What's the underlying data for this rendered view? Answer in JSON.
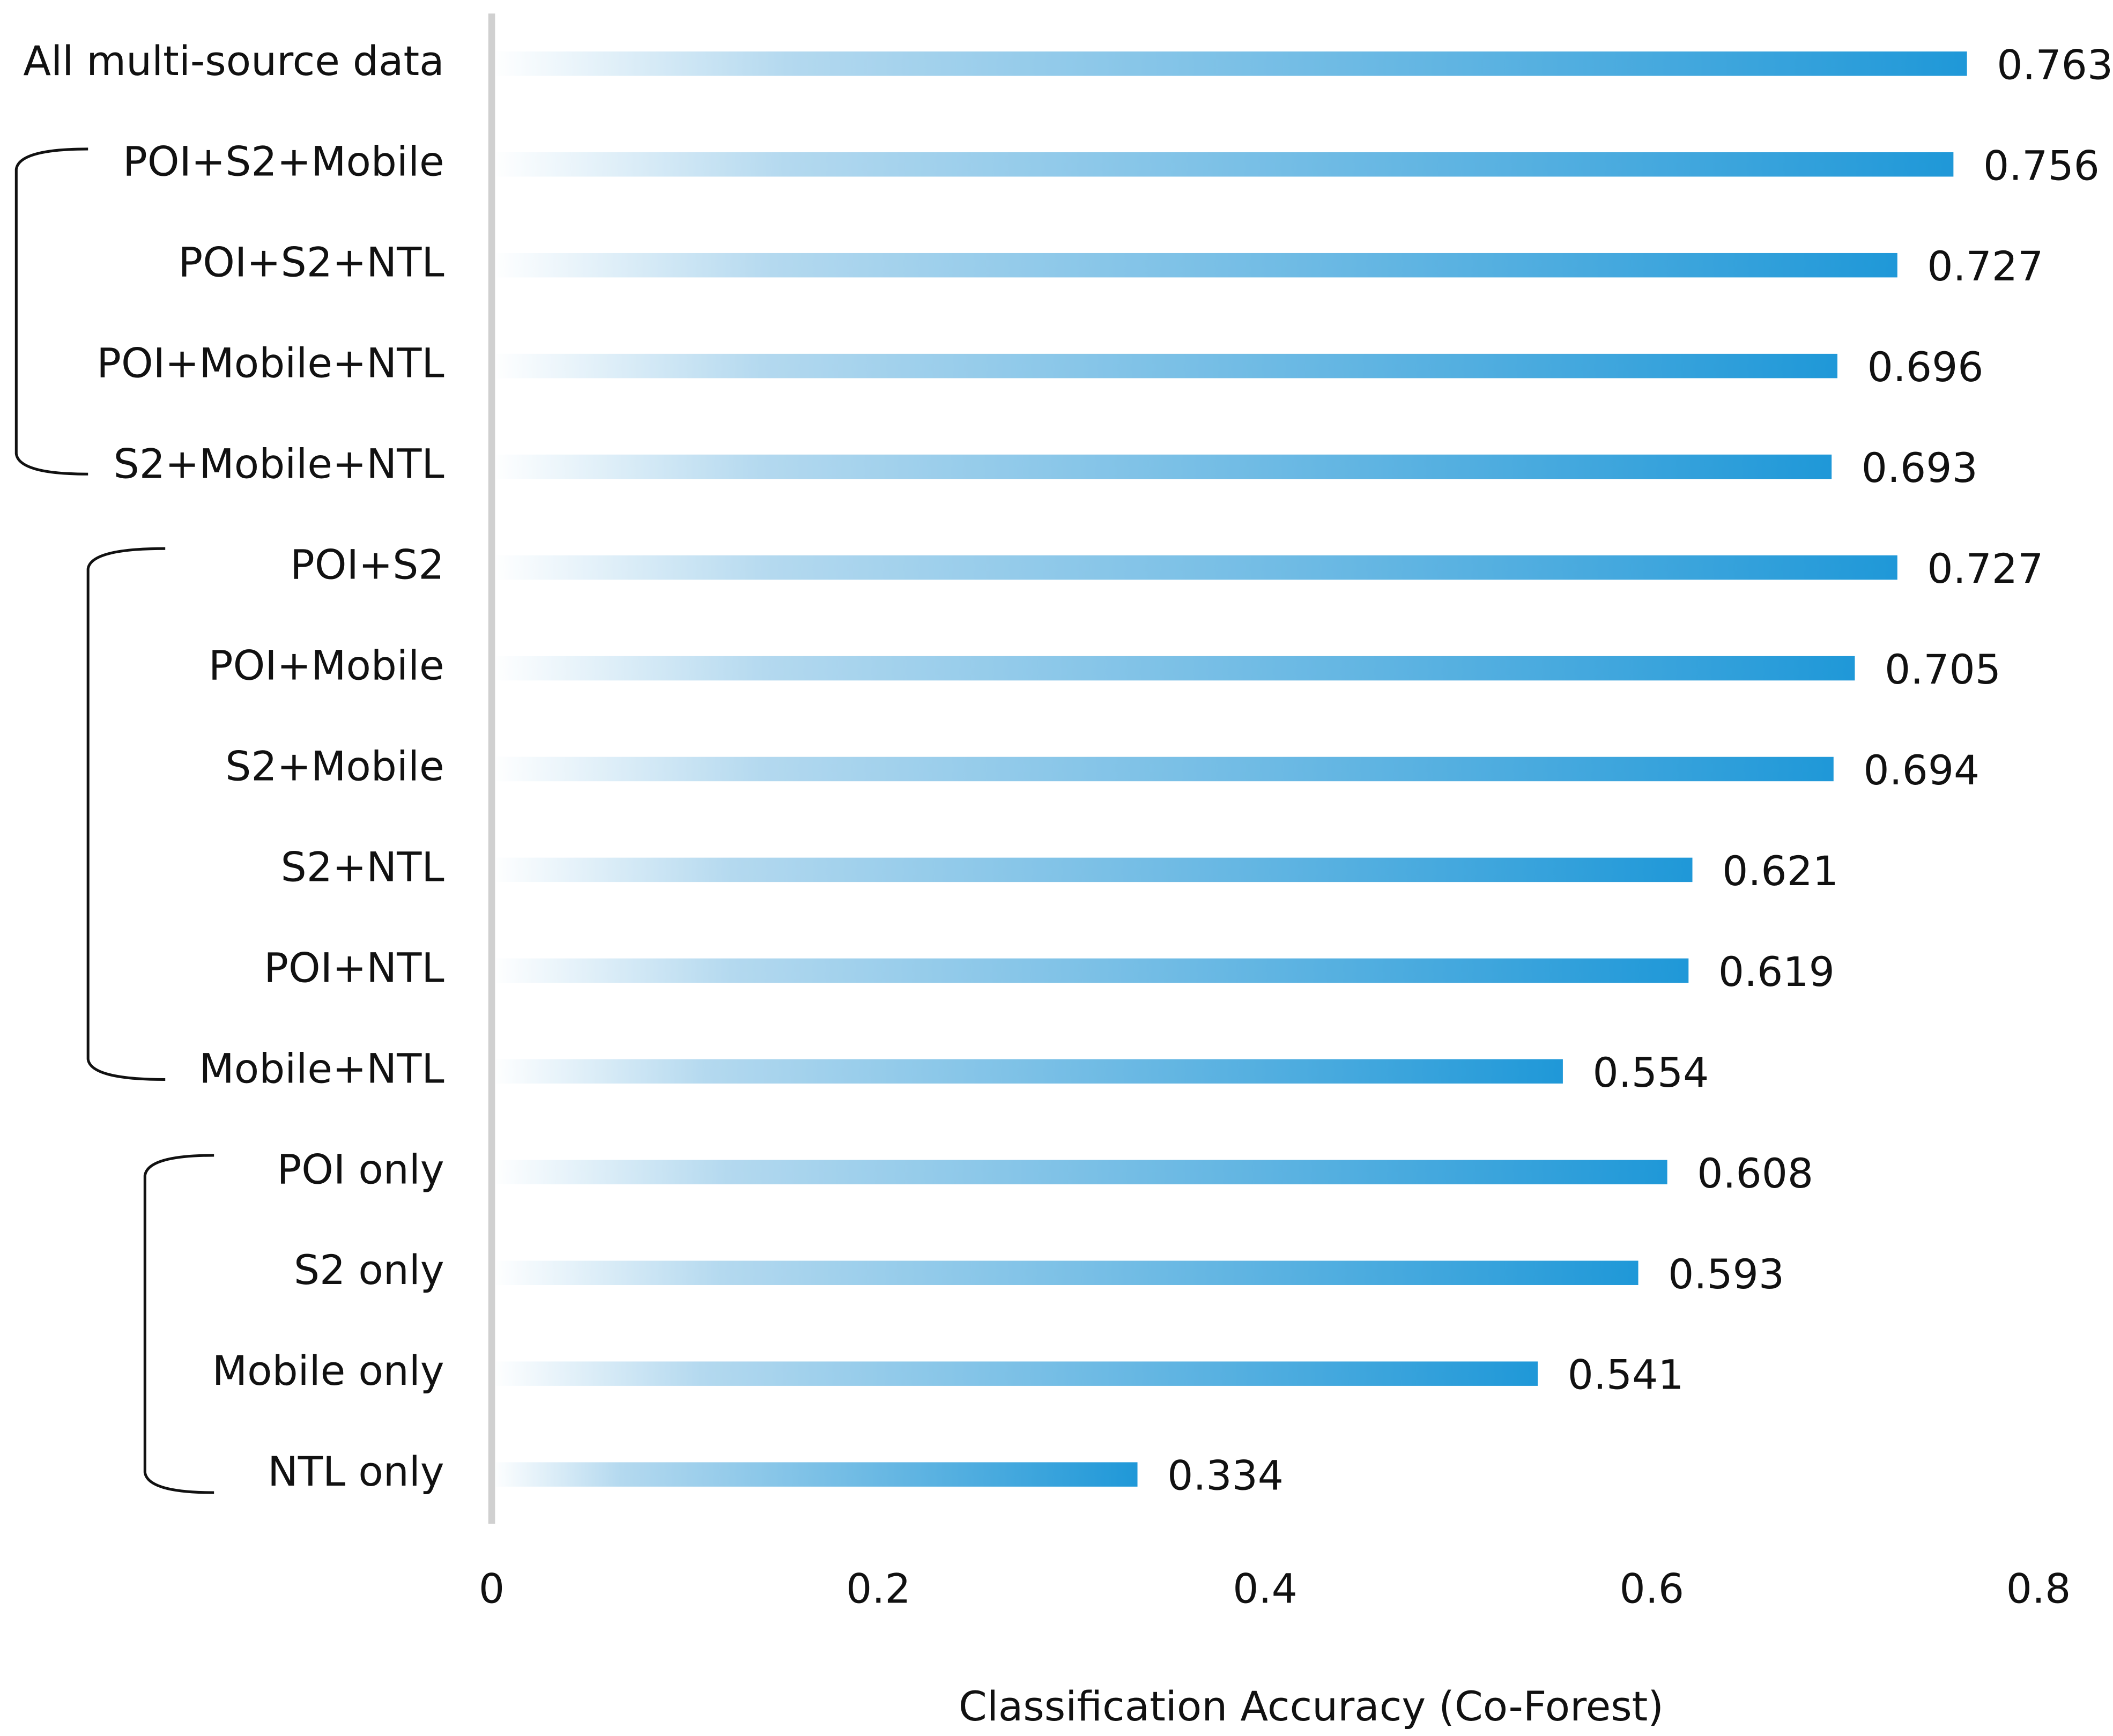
{
  "chart_data": {
    "type": "bar",
    "orientation": "horizontal",
    "x_label": "Classification Accuracy (Co-Forest)",
    "categories": [
      "All multi-source data",
      "POI+S2+Mobile",
      "POI+S2+NTL",
      "POI+Mobile+NTL",
      "S2+Mobile+NTL",
      "POI+S2",
      "POI+Mobile",
      "S2+Mobile",
      "S2+NTL",
      "POI+NTL",
      "Mobile+NTL",
      "POI only",
      "S2 only",
      "Mobile only",
      "NTL only"
    ],
    "values": [
      0.763,
      0.756,
      0.727,
      0.696,
      0.693,
      0.727,
      0.705,
      0.694,
      0.621,
      0.619,
      0.554,
      0.608,
      0.593,
      0.541,
      0.334
    ],
    "color": "#1f98d8",
    "xlim": [
      0,
      0.8
    ],
    "xticks": [
      0,
      0.2,
      0.4,
      0.6,
      0.8
    ]
  }
}
